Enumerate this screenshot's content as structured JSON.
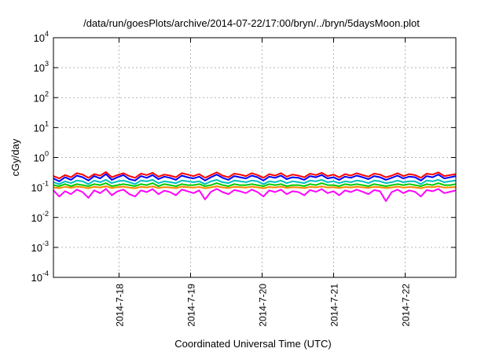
{
  "chart_data": {
    "type": "line",
    "title": "/data/run/goesPlots/archive/2014-07-22/17:00/bryn/../bryn/5daysMoon.plot",
    "xlabel": "Coordinated Universal Time (UTC)",
    "ylabel": "cGy/day",
    "yscale": "log",
    "ylim": [
      0.0001,
      10000
    ],
    "xlim": [
      "2014-07-17T02:00",
      "2014-07-22T17:00"
    ],
    "grid": true,
    "y_ticks": [
      {
        "base": "10",
        "exp": "-4"
      },
      {
        "base": "10",
        "exp": "-3"
      },
      {
        "base": "10",
        "exp": "-2"
      },
      {
        "base": "10",
        "exp": "-1"
      },
      {
        "base": "10",
        "exp": "0"
      },
      {
        "base": "10",
        "exp": "1"
      },
      {
        "base": "10",
        "exp": "2"
      },
      {
        "base": "10",
        "exp": "3"
      },
      {
        "base": "10",
        "exp": "4"
      }
    ],
    "x_ticks": [
      "2014-7-18",
      "2014-7-19",
      "2014-7-20",
      "2014-7-21",
      "2014-7-22"
    ],
    "series": [
      {
        "color": "#ff0000",
        "values": [
          0.24,
          0.2,
          0.26,
          0.22,
          0.3,
          0.27,
          0.21,
          0.28,
          0.25,
          0.33,
          0.22,
          0.26,
          0.3,
          0.24,
          0.21,
          0.29,
          0.26,
          0.31,
          0.23,
          0.27,
          0.25,
          0.22,
          0.3,
          0.27,
          0.24,
          0.28,
          0.21,
          0.26,
          0.32,
          0.25,
          0.22,
          0.29,
          0.27,
          0.24,
          0.3,
          0.26,
          0.21,
          0.28,
          0.25,
          0.3,
          0.23,
          0.27,
          0.25,
          0.22,
          0.29,
          0.26,
          0.31,
          0.24,
          0.27,
          0.22,
          0.28,
          0.25,
          0.3,
          0.26,
          0.23,
          0.29,
          0.27,
          0.22,
          0.25,
          0.3,
          0.24,
          0.28,
          0.26,
          0.21,
          0.29,
          0.27,
          0.32,
          0.24,
          0.26,
          0.28
        ]
      },
      {
        "color": "#0000ff",
        "values": [
          0.2,
          0.16,
          0.22,
          0.18,
          0.25,
          0.22,
          0.17,
          0.24,
          0.2,
          0.28,
          0.18,
          0.22,
          0.26,
          0.19,
          0.17,
          0.24,
          0.21,
          0.26,
          0.19,
          0.23,
          0.21,
          0.18,
          0.25,
          0.22,
          0.2,
          0.23,
          0.17,
          0.22,
          0.27,
          0.21,
          0.18,
          0.24,
          0.22,
          0.2,
          0.25,
          0.22,
          0.17,
          0.23,
          0.21,
          0.25,
          0.19,
          0.22,
          0.21,
          0.18,
          0.24,
          0.22,
          0.26,
          0.2,
          0.22,
          0.18,
          0.23,
          0.21,
          0.25,
          0.22,
          0.19,
          0.24,
          0.22,
          0.18,
          0.21,
          0.25,
          0.2,
          0.23,
          0.22,
          0.17,
          0.24,
          0.22,
          0.27,
          0.2,
          0.22,
          0.24
        ]
      },
      {
        "color": "#00bfbf",
        "values": [
          0.15,
          0.13,
          0.16,
          0.14,
          0.17,
          0.16,
          0.13,
          0.17,
          0.15,
          0.18,
          0.14,
          0.16,
          0.17,
          0.15,
          0.13,
          0.17,
          0.16,
          0.18,
          0.14,
          0.16,
          0.15,
          0.14,
          0.17,
          0.16,
          0.15,
          0.16,
          0.13,
          0.16,
          0.18,
          0.15,
          0.14,
          0.17,
          0.16,
          0.15,
          0.17,
          0.16,
          0.13,
          0.16,
          0.15,
          0.17,
          0.14,
          0.16,
          0.15,
          0.14,
          0.17,
          0.16,
          0.18,
          0.15,
          0.16,
          0.14,
          0.16,
          0.15,
          0.17,
          0.16,
          0.14,
          0.17,
          0.16,
          0.14,
          0.15,
          0.17,
          0.15,
          0.16,
          0.16,
          0.13,
          0.17,
          0.16,
          0.18,
          0.15,
          0.16,
          0.17
        ]
      },
      {
        "color": "#00cc00",
        "values": [
          0.12,
          0.11,
          0.13,
          0.11,
          0.13,
          0.12,
          0.11,
          0.13,
          0.12,
          0.14,
          0.11,
          0.12,
          0.13,
          0.12,
          0.11,
          0.13,
          0.12,
          0.14,
          0.11,
          0.13,
          0.12,
          0.11,
          0.13,
          0.12,
          0.12,
          0.13,
          0.11,
          0.12,
          0.14,
          0.12,
          0.11,
          0.13,
          0.12,
          0.12,
          0.13,
          0.12,
          0.11,
          0.13,
          0.12,
          0.13,
          0.11,
          0.12,
          0.12,
          0.11,
          0.13,
          0.12,
          0.14,
          0.12,
          0.12,
          0.11,
          0.13,
          0.12,
          0.13,
          0.12,
          0.11,
          0.13,
          0.12,
          0.11,
          0.12,
          0.13,
          0.12,
          0.13,
          0.12,
          0.11,
          0.13,
          0.12,
          0.14,
          0.12,
          0.12,
          0.13
        ]
      },
      {
        "color": "#ff8800",
        "values": [
          0.1,
          0.095,
          0.105,
          0.098,
          0.108,
          0.102,
          0.094,
          0.106,
          0.1,
          0.11,
          0.096,
          0.102,
          0.107,
          0.099,
          0.094,
          0.105,
          0.101,
          0.109,
          0.096,
          0.103,
          0.1,
          0.095,
          0.107,
          0.102,
          0.099,
          0.104,
          0.094,
          0.101,
          0.11,
          0.1,
          0.096,
          0.105,
          0.102,
          0.099,
          0.107,
          0.101,
          0.094,
          0.104,
          0.1,
          0.107,
          0.097,
          0.102,
          0.1,
          0.095,
          0.105,
          0.101,
          0.109,
          0.099,
          0.102,
          0.096,
          0.104,
          0.1,
          0.107,
          0.101,
          0.097,
          0.105,
          0.102,
          0.096,
          0.1,
          0.107,
          0.099,
          0.104,
          0.101,
          0.094,
          0.105,
          0.102,
          0.11,
          0.099,
          0.101,
          0.104
        ]
      },
      {
        "color": "#ff00ff",
        "values": [
          0.08,
          0.05,
          0.075,
          0.06,
          0.085,
          0.07,
          0.045,
          0.08,
          0.065,
          0.09,
          0.055,
          0.075,
          0.085,
          0.06,
          0.05,
          0.08,
          0.07,
          0.088,
          0.06,
          0.078,
          0.07,
          0.055,
          0.085,
          0.075,
          0.065,
          0.08,
          0.04,
          0.072,
          0.09,
          0.07,
          0.06,
          0.082,
          0.075,
          0.065,
          0.085,
          0.07,
          0.05,
          0.08,
          0.07,
          0.085,
          0.06,
          0.075,
          0.07,
          0.055,
          0.082,
          0.072,
          0.088,
          0.065,
          0.075,
          0.055,
          0.08,
          0.07,
          0.085,
          0.072,
          0.06,
          0.082,
          0.075,
          0.035,
          0.07,
          0.085,
          0.065,
          0.08,
          0.072,
          0.05,
          0.082,
          0.075,
          0.09,
          0.065,
          0.072,
          0.08
        ]
      }
    ]
  }
}
